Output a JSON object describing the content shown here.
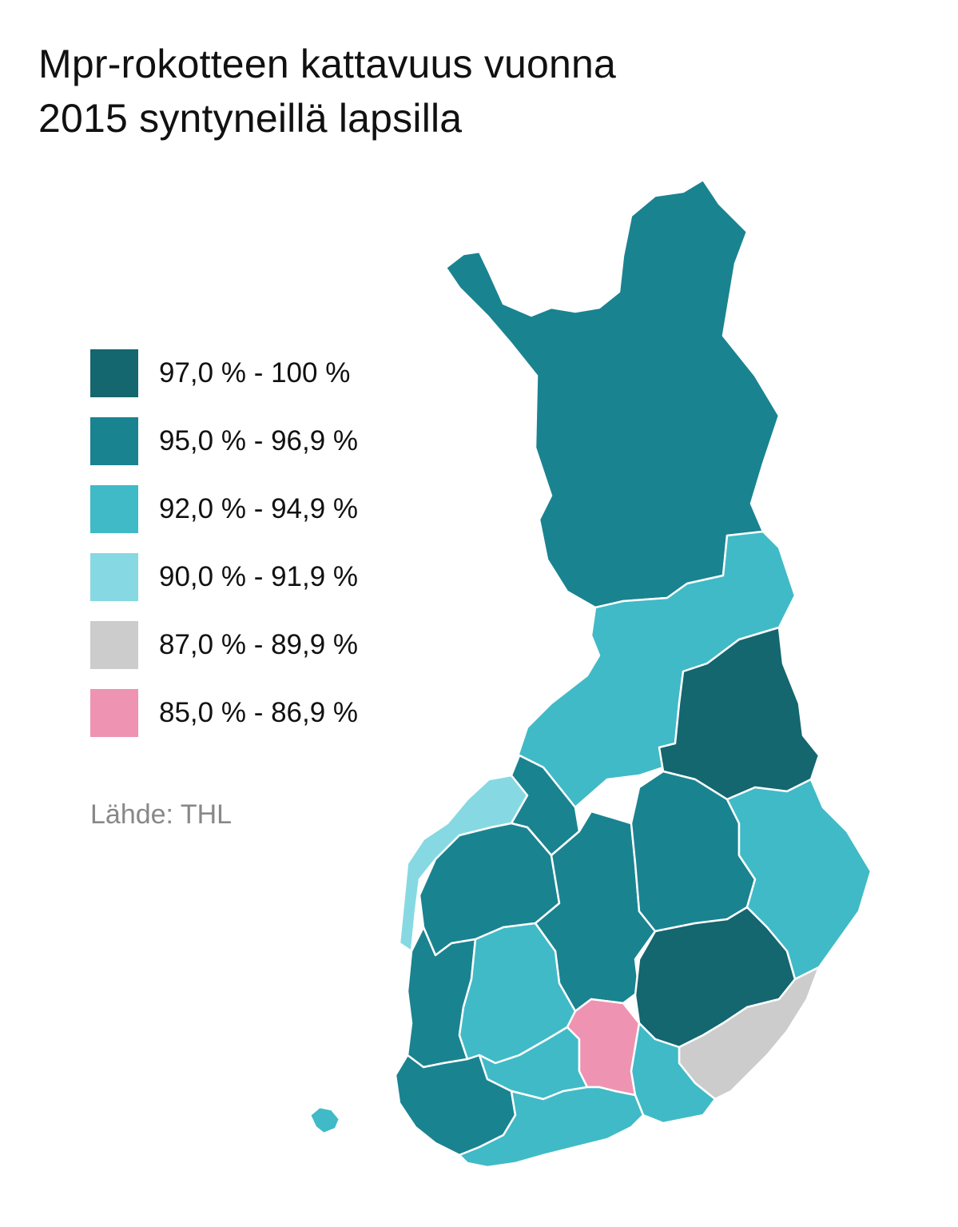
{
  "title": {
    "line1": "Mpr-rokotteen kattavuus vuonna",
    "line2": "2015 syntyneillä lapsilla"
  },
  "legend": [
    {
      "label": "97,0 % - 100 %",
      "color": "#14666f"
    },
    {
      "label": "95,0 % - 96,9 %",
      "color": "#1a8390"
    },
    {
      "label": "92,0 % - 94,9 %",
      "color": "#40bac6"
    },
    {
      "label": "90,0 % - 91,9 %",
      "color": "#86d9e2"
    },
    {
      "label": "87,0 % - 89,9 %",
      "color": "#cccccc"
    },
    {
      "label": "85,0 % - 86,9 %",
      "color": "#ee93b1"
    }
  ],
  "source": "Lähde: THL",
  "map": {
    "regions": [
      {
        "id": "lappi",
        "class_index": 1
      },
      {
        "id": "pohjois-pohjanmaa",
        "class_index": 2
      },
      {
        "id": "kainuu",
        "class_index": 0
      },
      {
        "id": "keski-pohjanmaa",
        "class_index": 1
      },
      {
        "id": "vaasa-coast",
        "class_index": 3
      },
      {
        "id": "etela-pohjanmaa",
        "class_index": 1
      },
      {
        "id": "keski-suomi",
        "class_index": 1
      },
      {
        "id": "pohjois-savo",
        "class_index": 1
      },
      {
        "id": "pohjois-karjala",
        "class_index": 2
      },
      {
        "id": "satakunta",
        "class_index": 1
      },
      {
        "id": "pirkanmaa",
        "class_index": 2
      },
      {
        "id": "varsinais-suomi",
        "class_index": 1
      },
      {
        "id": "kanta-hame",
        "class_index": 2
      },
      {
        "id": "paijat-hame",
        "class_index": 5
      },
      {
        "id": "kymenlaakso",
        "class_index": 2
      },
      {
        "id": "etela-savo",
        "class_index": 0
      },
      {
        "id": "etela-karjala",
        "class_index": 4
      },
      {
        "id": "uusimaa",
        "class_index": 2
      },
      {
        "id": "ahvenanmaa",
        "class_index": 2
      }
    ]
  }
}
